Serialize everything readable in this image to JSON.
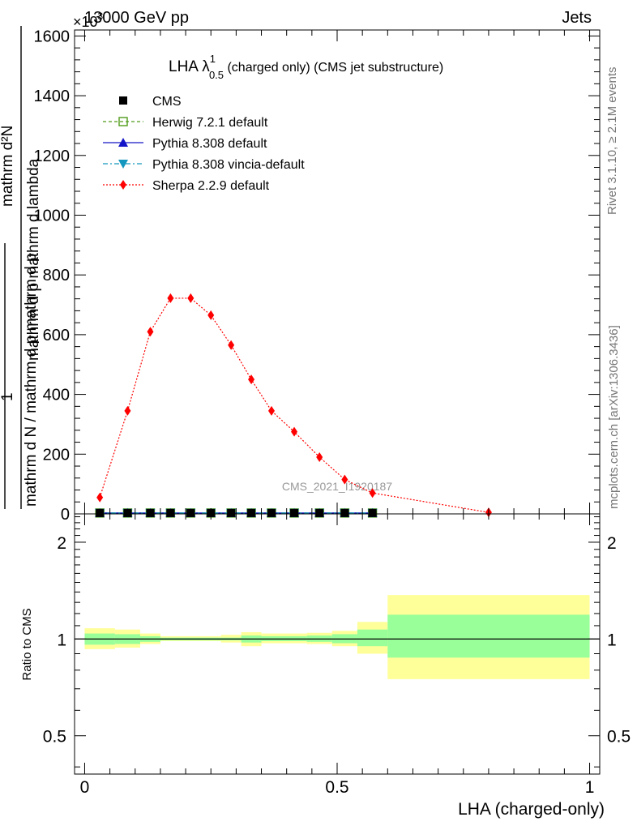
{
  "header": {
    "energy_label": "13000 GeV pp",
    "process_label": "Jets",
    "multiplier_label": "×10",
    "multiplier_exp": "3"
  },
  "side_labels": {
    "rivet": "Rivet 3.1.10, ≥ 2.1M events",
    "mcplots": "mcplots.cern.ch [arXiv:1306.3436]"
  },
  "watermark": "CMS_2021_I1920187",
  "chart_data": [
    {
      "type": "scatter",
      "title_main": "LHA λ",
      "title_sup": "1",
      "title_sub": "0.5",
      "title_rest": " (charged only) (CMS jet substructure)",
      "ylabel_numerator": "mathrm d²N",
      "ylabel_numerator_tail": "mathrm d p  mathrm d lambda",
      "ylabel_numerator_sub": "T",
      "ylabel_one": "1",
      "ylabel_denominator": "mathrm d N / mathrm d p  mathrm d p",
      "ylabel_denominator_sub1": "T",
      "ylabel_denominator_sub2": "T",
      "ylim": [
        0,
        1620
      ],
      "xlim": [
        -0.02,
        1.02
      ],
      "y_ticks": [
        0,
        200,
        400,
        600,
        800,
        1000,
        1200,
        1400,
        1600
      ],
      "y_tick_labels": [
        "0",
        "200",
        "400",
        "600",
        "800",
        "1000",
        "1200",
        "1400",
        "1600"
      ],
      "legend_position": "top-left",
      "series": [
        {
          "name": "CMS",
          "color": "#000000",
          "marker": "square-filled",
          "x": [
            0.03,
            0.085,
            0.13,
            0.17,
            0.21,
            0.25,
            0.29,
            0.33,
            0.37,
            0.415,
            0.465,
            0.515,
            0.57
          ],
          "y": [
            3,
            3,
            3,
            3,
            3,
            3,
            3,
            3,
            3,
            3,
            3,
            3,
            3
          ]
        },
        {
          "name": "Herwig 7.2.1 default",
          "color": "#4f9b19",
          "marker": "square-open",
          "line": "dashed",
          "x": [
            0.03,
            0.085,
            0.13,
            0.17,
            0.21,
            0.25,
            0.29,
            0.33,
            0.37,
            0.415,
            0.465,
            0.515,
            0.57
          ],
          "y": [
            3,
            3,
            3,
            3,
            3,
            3,
            3,
            3,
            3,
            3,
            3,
            3,
            3
          ]
        },
        {
          "name": "Pythia 8.308 default",
          "color": "#1414c8",
          "marker": "triangle-up",
          "line": "solid",
          "x": [
            0.03,
            0.085,
            0.13,
            0.17,
            0.21,
            0.25,
            0.29,
            0.33,
            0.37,
            0.415,
            0.465,
            0.515,
            0.57
          ],
          "y": [
            3,
            3,
            3,
            3,
            3,
            3,
            3,
            3,
            3,
            3,
            3,
            3,
            3
          ]
        },
        {
          "name": "Pythia 8.308 vincia-default",
          "color": "#1497be",
          "marker": "triangle-down",
          "line": "dashdot",
          "x": [
            0.03,
            0.085,
            0.13,
            0.17,
            0.21,
            0.25,
            0.29,
            0.33,
            0.37,
            0.415,
            0.465,
            0.515,
            0.57
          ],
          "y": [
            3,
            3,
            3,
            3,
            3,
            3,
            3,
            3,
            3,
            3,
            3,
            3,
            3
          ]
        },
        {
          "name": "Sherpa 2.2.9 default",
          "color": "#ff0000",
          "marker": "diamond",
          "line": "dotted",
          "x": [
            0.03,
            0.085,
            0.13,
            0.17,
            0.21,
            0.25,
            0.29,
            0.33,
            0.37,
            0.415,
            0.465,
            0.515,
            0.57,
            0.8
          ],
          "y": [
            55,
            345,
            610,
            722,
            722,
            665,
            565,
            450,
            345,
            275,
            190,
            115,
            70,
            5
          ]
        }
      ]
    },
    {
      "type": "area",
      "ylabel": "Ratio to CMS",
      "xlabel": "LHA (charged-only)",
      "log_y": true,
      "ylim": [
        0.38,
        2.45
      ],
      "xlim": [
        -0.02,
        1.02
      ],
      "y_ticks": [
        0.5,
        1,
        2
      ],
      "y_tick_labels": [
        "0.5",
        "1",
        "2"
      ],
      "x_ticks": [
        0,
        0.5,
        1
      ],
      "x_tick_labels": [
        "0",
        "0.5",
        "1"
      ],
      "reference_line": 1,
      "band_colors": {
        "outer": "#ffff99",
        "inner": "#99ff99",
        "line": "#000000"
      },
      "bands": [
        {
          "x0": 0.0,
          "x1": 0.06,
          "outer": [
            0.93,
            1.08
          ],
          "inner": [
            0.96,
            1.04
          ]
        },
        {
          "x0": 0.06,
          "x1": 0.11,
          "outer": [
            0.94,
            1.07
          ],
          "inner": [
            0.965,
            1.035
          ]
        },
        {
          "x0": 0.11,
          "x1": 0.15,
          "outer": [
            0.965,
            1.04
          ],
          "inner": [
            0.98,
            1.02
          ]
        },
        {
          "x0": 0.15,
          "x1": 0.27,
          "outer": [
            0.985,
            1.02
          ],
          "inner": [
            0.99,
            1.01
          ]
        },
        {
          "x0": 0.27,
          "x1": 0.31,
          "outer": [
            0.975,
            1.03
          ],
          "inner": [
            0.99,
            1.01
          ]
        },
        {
          "x0": 0.31,
          "x1": 0.35,
          "outer": [
            0.95,
            1.05
          ],
          "inner": [
            0.975,
            1.025
          ]
        },
        {
          "x0": 0.35,
          "x1": 0.44,
          "outer": [
            0.97,
            1.04
          ],
          "inner": [
            0.985,
            1.02
          ]
        },
        {
          "x0": 0.44,
          "x1": 0.49,
          "outer": [
            0.965,
            1.045
          ],
          "inner": [
            0.98,
            1.025
          ]
        },
        {
          "x0": 0.49,
          "x1": 0.54,
          "outer": [
            0.95,
            1.06
          ],
          "inner": [
            0.97,
            1.035
          ]
        },
        {
          "x0": 0.54,
          "x1": 0.6,
          "outer": [
            0.9,
            1.13
          ],
          "inner": [
            0.95,
            1.07
          ]
        },
        {
          "x0": 0.6,
          "x1": 1.0,
          "outer": [
            0.75,
            1.37
          ],
          "inner": [
            0.875,
            1.19
          ]
        }
      ]
    }
  ]
}
